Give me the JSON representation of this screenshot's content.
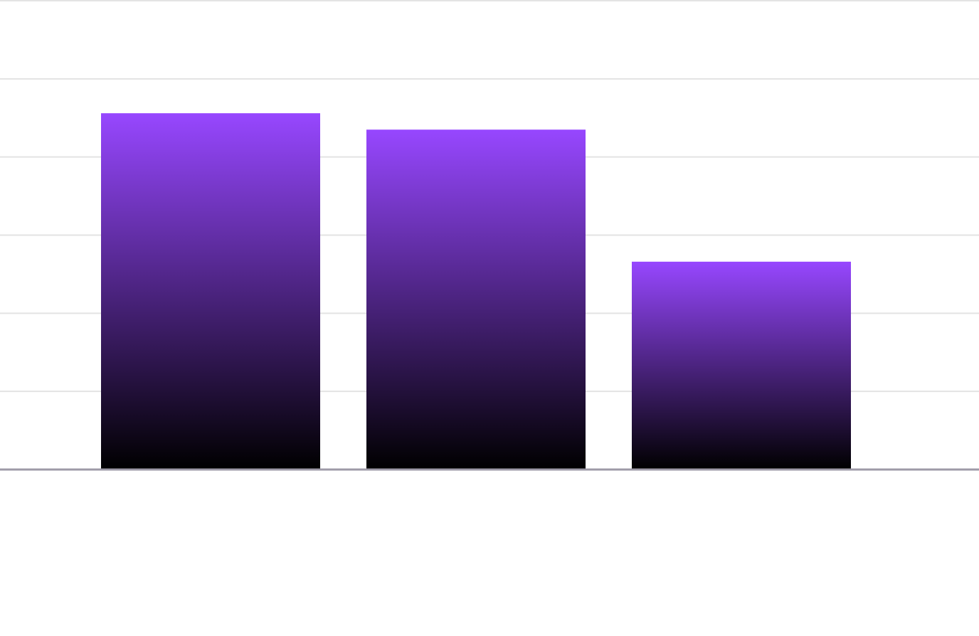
{
  "chart_data": {
    "type": "bar",
    "categories": [
      null,
      null,
      null
    ],
    "values": [
      4.56,
      4.35,
      2.66
    ],
    "gradient": [
      "#9747ff",
      "#000000"
    ],
    "ylim": [
      0,
      6
    ],
    "yticks": [
      0,
      1,
      2,
      3,
      4,
      5,
      6
    ],
    "tick_labels": false,
    "grid": true,
    "grid_color": "#e3e3e3",
    "axis_color": "#9e9aa7"
  }
}
